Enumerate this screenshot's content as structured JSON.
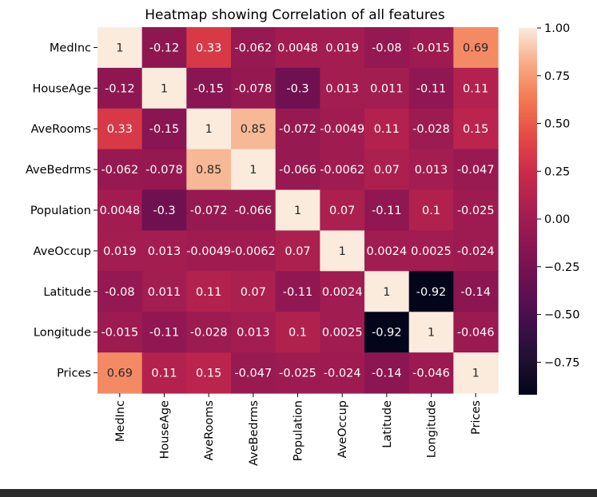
{
  "chart_data": {
    "type": "heatmap",
    "title": "Heatmap showing Correlation of all features",
    "rows": [
      "MedInc",
      "HouseAge",
      "AveRooms",
      "AveBedrms",
      "Population",
      "AveOccup",
      "Latitude",
      "Longitude",
      "Prices"
    ],
    "columns": [
      "MedInc",
      "HouseAge",
      "AveRooms",
      "AveBedrms",
      "Population",
      "AveOccup",
      "Latitude",
      "Longitude",
      "Prices"
    ],
    "values": [
      [
        1,
        -0.12,
        0.33,
        -0.062,
        0.0048,
        0.019,
        -0.08,
        -0.015,
        0.69
      ],
      [
        -0.12,
        1,
        -0.15,
        -0.078,
        -0.3,
        0.013,
        0.011,
        -0.11,
        0.11
      ],
      [
        0.33,
        -0.15,
        1,
        0.85,
        -0.072,
        -0.0049,
        0.11,
        -0.028,
        0.15
      ],
      [
        -0.062,
        -0.078,
        0.85,
        1,
        -0.066,
        -0.0062,
        0.07,
        0.013,
        -0.047
      ],
      [
        0.0048,
        -0.3,
        -0.072,
        -0.066,
        1,
        0.07,
        -0.11,
        0.1,
        -0.025
      ],
      [
        0.019,
        0.013,
        -0.0049,
        -0.0062,
        0.07,
        1,
        0.0024,
        0.0025,
        -0.024
      ],
      [
        -0.08,
        0.011,
        0.11,
        0.07,
        -0.11,
        0.0024,
        1,
        -0.92,
        -0.14
      ],
      [
        -0.015,
        -0.11,
        -0.028,
        0.013,
        0.1,
        0.0025,
        -0.92,
        1,
        -0.046
      ],
      [
        0.69,
        0.11,
        0.15,
        -0.047,
        -0.025,
        -0.024,
        -0.14,
        -0.046,
        1
      ]
    ],
    "labels": [
      [
        "1",
        "-0.12",
        "0.33",
        "-0.062",
        "0.0048",
        "0.019",
        "-0.08",
        "-0.015",
        "0.69"
      ],
      [
        "-0.12",
        "1",
        "-0.15",
        "-0.078",
        "-0.3",
        "0.013",
        "0.011",
        "-0.11",
        "0.11"
      ],
      [
        "0.33",
        "-0.15",
        "1",
        "0.85",
        "-0.072",
        "-0.0049",
        "0.11",
        "-0.028",
        "0.15"
      ],
      [
        "-0.062",
        "-0.078",
        "0.85",
        "1",
        "-0.066",
        "-0.0062",
        "0.07",
        "0.013",
        "-0.047"
      ],
      [
        "0.0048",
        "-0.3",
        "-0.072",
        "-0.066",
        "1",
        "0.07",
        "-0.11",
        "0.1",
        "-0.025"
      ],
      [
        "0.019",
        "0.013",
        "-0.0049",
        "-0.0062",
        "0.07",
        "1",
        "0.0024",
        "0.0025",
        "-0.024"
      ],
      [
        "-0.08",
        "0.011",
        "0.11",
        "0.07",
        "-0.11",
        "0.0024",
        "1",
        "-0.92",
        "-0.14"
      ],
      [
        "-0.015",
        "-0.11",
        "-0.028",
        "0.013",
        "0.1",
        "0.0025",
        "-0.92",
        "1",
        "-0.046"
      ],
      [
        "0.69",
        "0.11",
        "0.15",
        "-0.047",
        "-0.025",
        "-0.024",
        "-0.14",
        "-0.046",
        "1"
      ]
    ],
    "colorbar": {
      "range": [
        -0.92,
        1.0
      ],
      "ticks": [
        1.0,
        0.75,
        0.5,
        0.25,
        0.0,
        -0.25,
        -0.5,
        -0.75
      ],
      "tick_labels": [
        "1.00",
        "0.75",
        "0.50",
        "0.25",
        "0.00",
        "−0.25",
        "−0.50",
        "−0.75"
      ]
    },
    "colormap": "rocket",
    "grid": false
  }
}
